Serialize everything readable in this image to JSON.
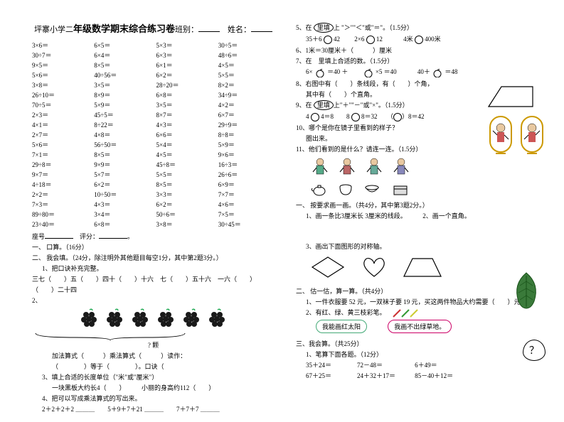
{
  "title_prefix": "坪寨小学二",
  "title_bold": "年级数学期末综合练习卷",
  "title_class_label": "班别：",
  "title_name_label": "姓名：",
  "mult_grid": [
    "3×6＝",
    "6×5＝",
    "5×3＝",
    "30÷5＝",
    "30÷7＝",
    "6×4＝",
    "6×3＝",
    "48÷6＝",
    "9×5＝",
    "8×5＝",
    "6×1＝",
    "4×5＝",
    "5×6＝",
    "40÷56＝",
    "6×2＝",
    "5×5＝",
    "3×8＝",
    "3×5＝",
    "28÷20＝",
    "8×2＝",
    "26÷10＝",
    "8×9＝",
    "6×8＝",
    "34÷9＝",
    "70÷5＝",
    "5×9＝",
    "3×5＝",
    "4×2＝",
    "2×3＝",
    "45÷5＝",
    "8×7＝",
    "6×7＝",
    "4×1＝",
    "8÷22＝",
    "4×3＝",
    "29÷9＝",
    "2×7＝",
    "4×8＝",
    "6×6＝",
    "8÷8＝",
    "5×6＝",
    "56÷50＝",
    "5×4＝",
    "5×9＝",
    "7×1＝",
    "8×5＝",
    "4×5＝",
    "9×6＝",
    "29÷8＝",
    "9×9＝",
    "45÷8＝",
    "16÷3＝",
    "9×7＝",
    "5×7＝",
    "5×5＝",
    "26÷6＝",
    "4÷18＝",
    "6×2＝",
    "8×5＝",
    "6×9＝",
    "2×2＝",
    "10÷50＝",
    "3×3＝",
    "7×7＝",
    "7×3＝",
    "4×3＝",
    "6×2＝",
    "4×6＝",
    "89÷80＝",
    "3×4＝",
    "50÷6＝",
    "7×5＝",
    "23÷40＝",
    "6×8＝",
    "3×8＝",
    "30÷45＝"
  ],
  "seat_label": "座号",
  "score_label": "评分：",
  "s1_h": "一、 口算。（16分）",
  "s2_h": "二、 我会填。（24分，除注明外其他题目每空1分，其中第2题3分。）",
  "s2_q1": "1、把口诀补充完整。",
  "s2_q1_row": "三七（　　）五（　　）四十（　　）十六　七（　　）五十六　一六（　　）",
  "s2_q1_row2": "（　　）二十四",
  "s2_brace_label": "? 颗",
  "s2_labels": {
    "add": "加法算式（",
    "mul": "）乘法算式（",
    "read": "）读作：",
    "eq": "（　　　　）等于（　　　　）。口诀（"
  },
  "s2_q3": "3、填上合适的长度单位（\"米\"或\"厘米\"）",
  "s2_q3a": "一块黑板大约长4（　　）",
  "s2_q3b": "小丽的身高约112（　　）",
  "s2_q4": "4、把可以写成乘法算式的写出来。",
  "s2_q4_items": "2＋2＋2＋2 ＿＿＿　　5＋9＋7＋21 ＿＿＿　　7＋7＋7 ＿＿＿",
  "r_q5": "5、在　里填上\">\"\"<\"或\"＝\"。（1.5分）",
  "r_q5_items": [
    "35＋6",
    "42",
    "2×6",
    "12",
    "4米",
    "400米"
  ],
  "r_q6": "6、1米＝30厘米＋（　　　）厘米",
  "r_q7": "7、在　里填上合适的数。（1.5分）",
  "r_q7_items": [
    "6×",
    "＝40 ＋",
    "",
    "×5 ＝40",
    "40＋",
    "＝48"
  ],
  "r_q8": "8、右图中有（　　）条线段，有（　　）个角，",
  "r_q8b": "其中有（　　）个直角。",
  "r_q9": "9、在　里填上\"＋\"\"－\"或\"×\"。（1.5分）",
  "r_q9_items": [
    "4",
    "4＝8",
    "8",
    "8＝32",
    "（",
    "）8＝42"
  ],
  "r_q10": "10、哪个是你在镜子里看到的样子？",
  "r_q10b": "圈出来。",
  "r_q11": "11、他们看到的是什么？请连一连。（1.5分）",
  "r_s1_h": "一、 按要求画一画。（共4分，其中第3题2分。）",
  "r_s1_q1": "1、画一条比3厘米长 3厘米的线段。",
  "r_s1_q2": "2、画一个直角。",
  "r_s1_q3": "3、画出下面图形的对称轴。",
  "r_s2_h": "二、 估一估，算一算。（共4分）",
  "r_s2_q1": "1、一件衣服要 52 元，一双袜子要 19 元，买这两件物品大约需要（　　）元。",
  "r_s2_q2": "2、有红、绿、黄三枝彩笔。",
  "r_cloud1": "我能画红太阳",
  "r_cloud2": "我画不出绿草地。",
  "r_s3_h": "三、我会算。（共25分）",
  "r_s3_q1": "1、笔算下面各题。（12分）",
  "r_s3_items": [
    "35＋24＝",
    "72－48＝",
    "6＋49＝",
    "67＋25＝",
    "24＋32＋17＝",
    "85－40＋12＝"
  ]
}
